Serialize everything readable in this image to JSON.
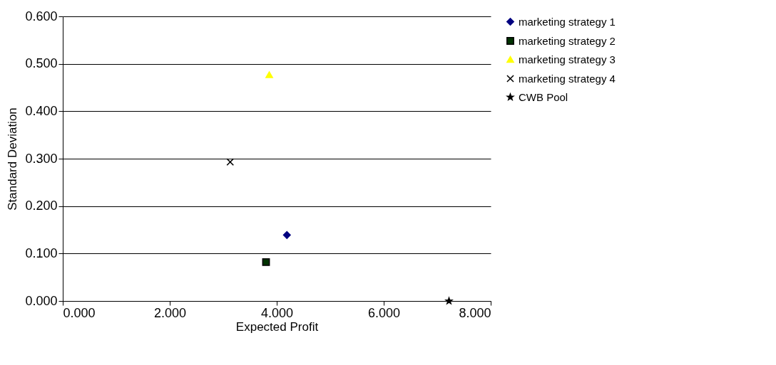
{
  "chart_data": {
    "type": "scatter",
    "xlabel": "Expected Profit",
    "ylabel": "Standard Deviation",
    "xlim": [
      0,
      8
    ],
    "ylim": [
      0,
      0.6
    ],
    "xticks": [
      {
        "value": 0,
        "label": "0.000"
      },
      {
        "value": 2,
        "label": "2.000"
      },
      {
        "value": 4,
        "label": "4.000"
      },
      {
        "value": 6,
        "label": "6.000"
      },
      {
        "value": 8,
        "label": "8.000"
      }
    ],
    "yticks": [
      {
        "value": 0,
        "label": "0.000"
      },
      {
        "value": 0.1,
        "label": "0.100"
      },
      {
        "value": 0.2,
        "label": "0.200"
      },
      {
        "value": 0.3,
        "label": "0.300"
      },
      {
        "value": 0.4,
        "label": "0.400"
      },
      {
        "value": 0.5,
        "label": "0.500"
      },
      {
        "value": 0.6,
        "label": "0.600"
      }
    ],
    "grid": "y",
    "legend": "right",
    "series": [
      {
        "name": "marketing strategy 1",
        "color": "#000080",
        "marker": "diamond",
        "x": [
          4.19
        ],
        "values": [
          0.139
        ]
      },
      {
        "name": "marketing strategy 2",
        "color": "#003300",
        "marker": "square",
        "x": [
          3.8
        ],
        "values": [
          0.082
        ]
      },
      {
        "name": "marketing strategy 3",
        "color": "#ffff00",
        "marker": "triangle",
        "x": [
          3.86
        ],
        "values": [
          0.477
        ]
      },
      {
        "name": "marketing strategy 4",
        "color": "#000000",
        "marker": "cross",
        "x": [
          3.13
        ],
        "values": [
          0.293
        ]
      },
      {
        "name": "CWB Pool",
        "color": "#000000",
        "marker": "star",
        "x": [
          7.22
        ],
        "values": [
          0
        ]
      }
    ]
  }
}
